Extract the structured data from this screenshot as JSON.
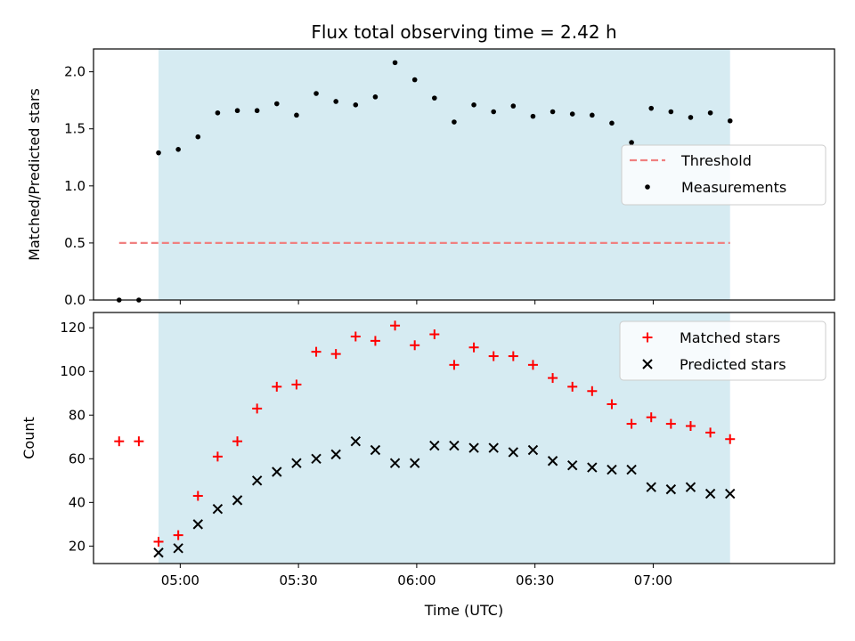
{
  "chart_data": {
    "type": "scatter",
    "title": "Flux total observing time = 2.42 h",
    "xlabel": "Time (UTC)",
    "x_tick_labels": [
      "05:00",
      "05:30",
      "06:00",
      "06:30",
      "07:00"
    ],
    "x_ticks": [
      "04:59:30",
      "05:29:30",
      "05:59:30",
      "06:29:30",
      "06:59:30"
    ],
    "xlim": [
      "04:37:30",
      "07:45:30"
    ],
    "shaded_interval": [
      "04:54:00",
      "07:19:00"
    ],
    "shade_color": "#add8e6",
    "times": [
      "04:44:00",
      "04:49:00",
      "04:54:00",
      "04:59:00",
      "05:04:00",
      "05:09:00",
      "05:14:00",
      "05:19:00",
      "05:24:00",
      "05:29:00",
      "05:34:00",
      "05:39:00",
      "05:44:00",
      "05:49:00",
      "05:54:00",
      "05:59:00",
      "06:04:00",
      "06:09:00",
      "06:14:00",
      "06:19:00",
      "06:24:00",
      "06:29:00",
      "06:34:00",
      "06:39:00",
      "06:44:00",
      "06:49:00",
      "06:54:00",
      "06:59:00",
      "07:04:00",
      "07:09:00",
      "07:14:00",
      "07:19:00"
    ],
    "top_panel": {
      "ylabel": "Matched/Predicted stars",
      "ylim": [
        0,
        2.2
      ],
      "y_ticks": [
        0.0,
        0.5,
        1.0,
        1.5,
        2.0
      ],
      "y_tick_labels": [
        "0.0",
        "0.5",
        "1.0",
        "1.5",
        "2.0"
      ],
      "threshold": {
        "name": "Threshold",
        "value": 0.5,
        "color": "#f08080",
        "start": "04:44:00",
        "end": "07:19:00"
      },
      "series": [
        {
          "name": "Measurements",
          "color": "#000000",
          "values": [
            0.0,
            0.0,
            1.29,
            1.32,
            1.43,
            1.64,
            1.66,
            1.66,
            1.72,
            1.62,
            1.81,
            1.74,
            1.71,
            1.78,
            2.08,
            1.93,
            1.77,
            1.56,
            1.71,
            1.65,
            1.7,
            1.61,
            1.65,
            1.63,
            1.62,
            1.55,
            1.38,
            1.68,
            1.65,
            1.6,
            1.64,
            1.57
          ]
        }
      ],
      "legend_position": "center-right"
    },
    "bottom_panel": {
      "ylabel": "Count",
      "ylim": [
        12,
        127
      ],
      "y_ticks": [
        20,
        40,
        60,
        80,
        100,
        120
      ],
      "y_tick_labels": [
        "20",
        "40",
        "60",
        "80",
        "100",
        "120"
      ],
      "series": [
        {
          "name": "Matched stars",
          "marker": "+",
          "color": "#ff0000",
          "values": [
            68,
            68,
            22,
            25,
            43,
            61,
            68,
            83,
            93,
            94,
            109,
            108,
            116,
            114,
            121,
            112,
            117,
            103,
            111,
            107,
            107,
            103,
            97,
            93,
            91,
            85,
            76,
            79,
            76,
            75,
            72,
            69
          ]
        },
        {
          "name": "Predicted stars",
          "marker": "x",
          "color": "#000000",
          "values": [
            null,
            null,
            17,
            19,
            30,
            37,
            41,
            50,
            54,
            58,
            60,
            62,
            68,
            64,
            58,
            58,
            66,
            66,
            65,
            65,
            63,
            64,
            59,
            57,
            56,
            55,
            55,
            47,
            46,
            47,
            44,
            44
          ]
        }
      ],
      "legend_position": "top-right"
    }
  }
}
